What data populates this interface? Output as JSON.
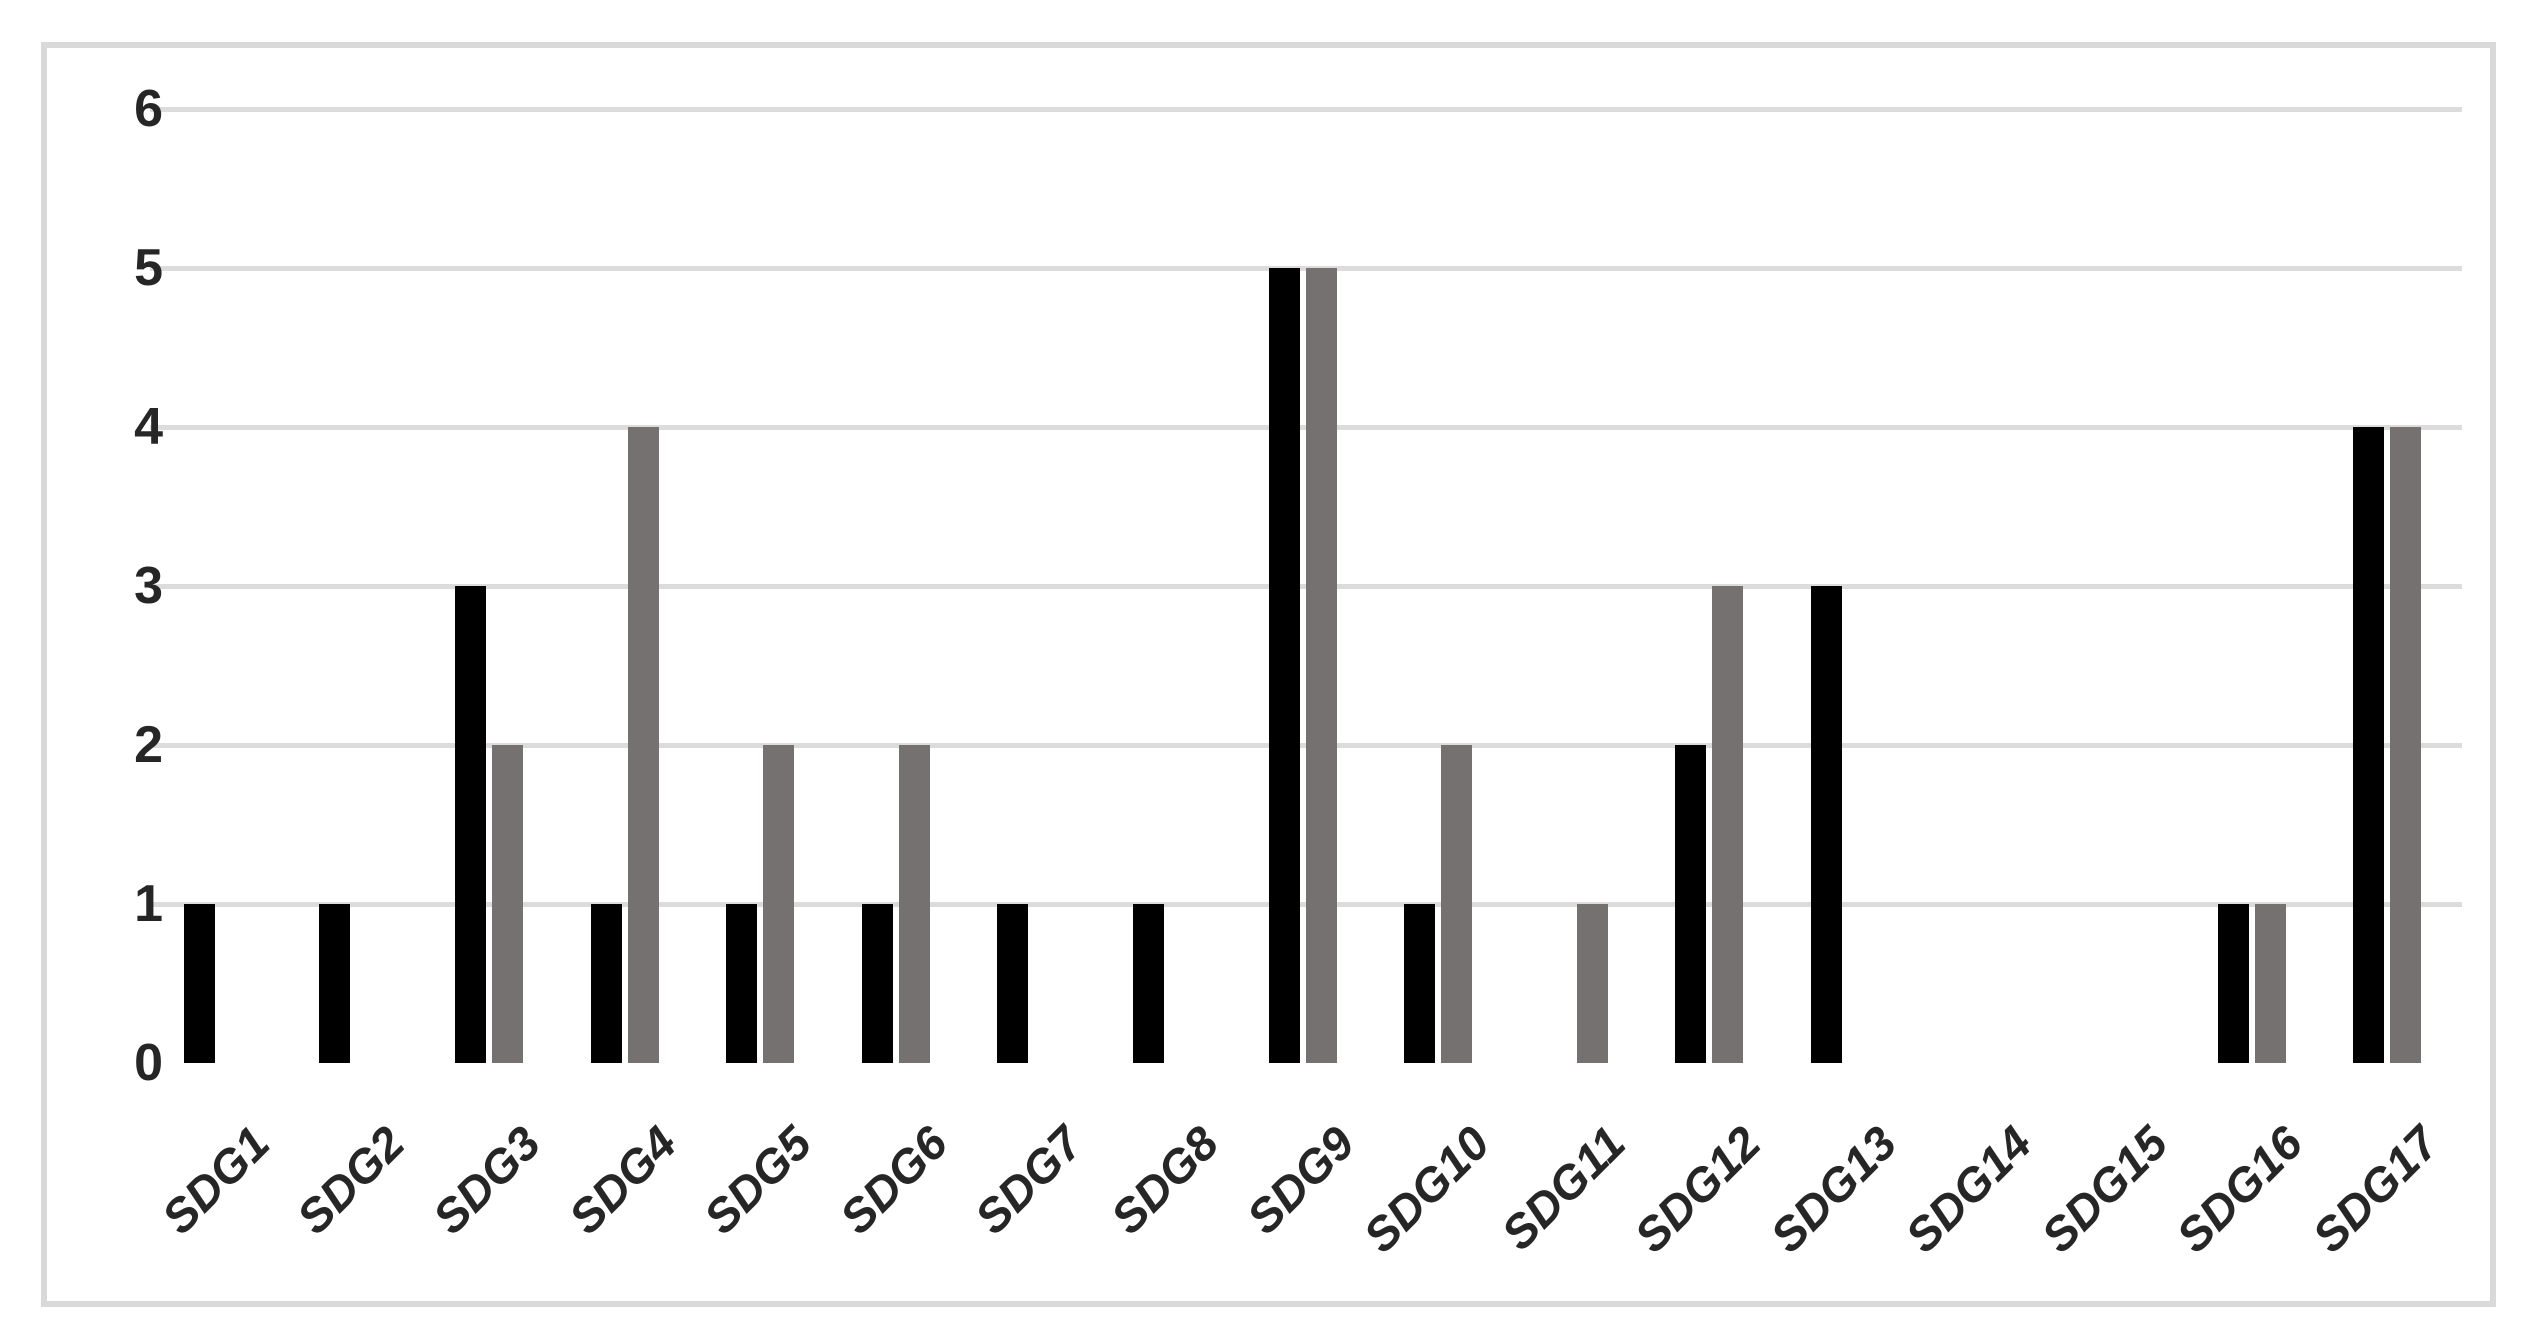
{
  "chart_data": {
    "type": "bar",
    "title": "",
    "xlabel": "",
    "ylabel": "",
    "categories": [
      "SDG1",
      "SDG2",
      "SDG3",
      "SDG4",
      "SDG5",
      "SDG6",
      "SDG7",
      "SDG8",
      "SDG9",
      "SDG10",
      "SDG11",
      "SDG12",
      "SDG13",
      "SDG14",
      "SDG15",
      "SDG16",
      "SDG17"
    ],
    "series": [
      {
        "name": "black",
        "color": "#000000",
        "values": [
          1,
          1,
          3,
          1,
          1,
          1,
          1,
          1,
          5,
          1,
          0,
          2,
          3,
          0,
          0,
          1,
          4
        ]
      },
      {
        "name": "gray",
        "color": "#767171",
        "values": [
          0,
          0,
          2,
          4,
          2,
          2,
          0,
          0,
          5,
          2,
          1,
          3,
          0,
          0,
          0,
          1,
          4
        ]
      }
    ],
    "ylim": [
      0,
      6
    ],
    "yticks": [
      0,
      1,
      2,
      3,
      4,
      5,
      6
    ],
    "grid": true,
    "legend": "none",
    "colors": {
      "gridline": "#dcdcdc",
      "frame_border": "#d9d9d9",
      "tick_text": "#262626",
      "background": "#ffffff"
    }
  }
}
